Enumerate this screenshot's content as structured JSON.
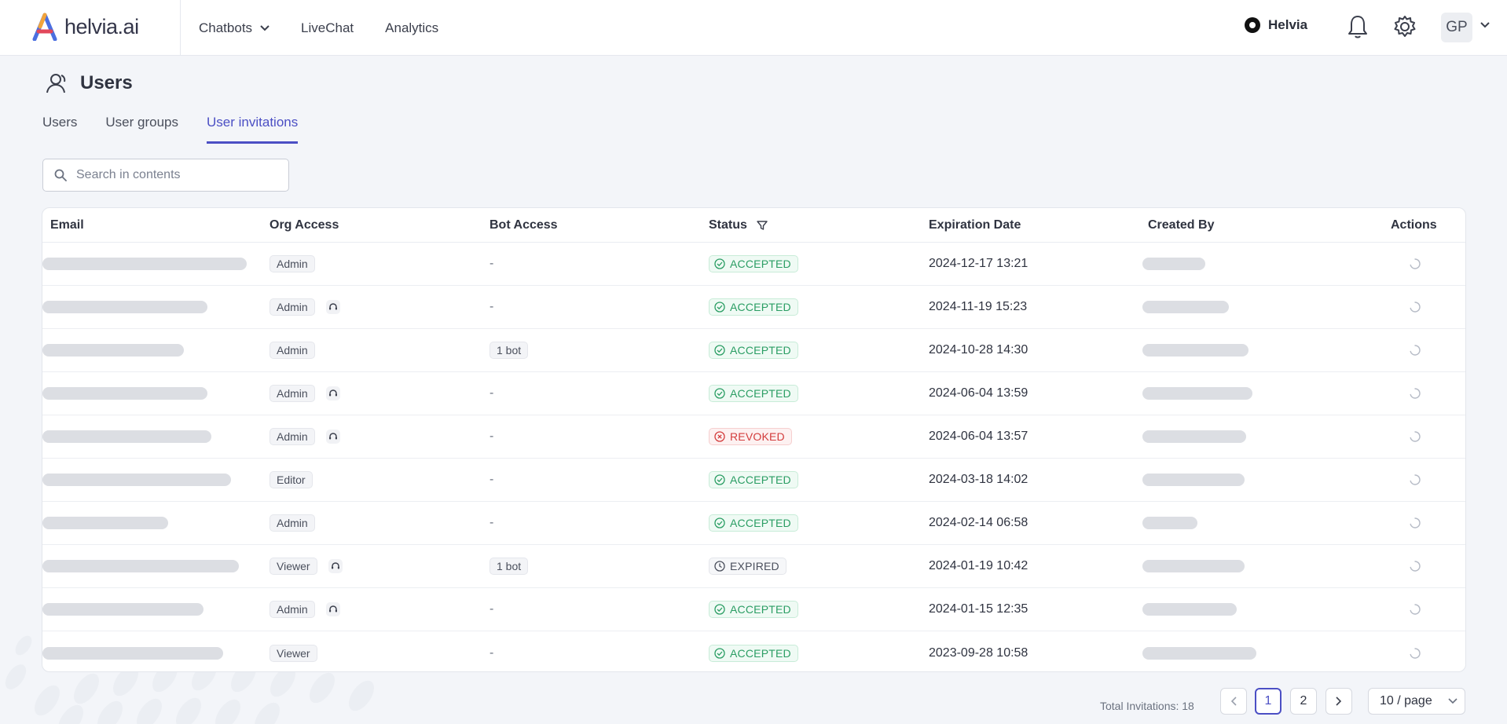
{
  "brand": {
    "name": "helvia.ai"
  },
  "nav": {
    "items": [
      {
        "label": "Chatbots",
        "has_dropdown": true
      },
      {
        "label": "LiveChat"
      },
      {
        "label": "Analytics"
      }
    ],
    "org_name": "Helvia",
    "avatar_initials": "GP"
  },
  "page": {
    "title": "Users",
    "tabs": [
      {
        "label": "Users",
        "active": false
      },
      {
        "label": "User groups",
        "active": false
      },
      {
        "label": "User invitations",
        "active": true
      }
    ],
    "search_placeholder": "Search in contents"
  },
  "table": {
    "columns": [
      "Email",
      "Org Access",
      "Bot Access",
      "Status",
      "Expiration Date",
      "Created By",
      "Actions"
    ],
    "rows": [
      {
        "email": "",
        "org": "Admin",
        "agent": false,
        "bot": "-",
        "status": "ACCEPTED",
        "expires": "2024-12-17 13:21",
        "created_by": ""
      },
      {
        "email": "",
        "org": "Admin",
        "agent": true,
        "bot": "-",
        "status": "ACCEPTED",
        "expires": "2024-11-19 15:23",
        "created_by": ""
      },
      {
        "email": "",
        "org": "Admin",
        "agent": false,
        "bot": "1 bot",
        "status": "ACCEPTED",
        "expires": "2024-10-28 14:30",
        "created_by": ""
      },
      {
        "email": "",
        "org": "Admin",
        "agent": true,
        "bot": "-",
        "status": "ACCEPTED",
        "expires": "2024-06-04 13:59",
        "created_by": ""
      },
      {
        "email": "",
        "org": "Admin",
        "agent": true,
        "bot": "-",
        "status": "REVOKED",
        "expires": "2024-06-04 13:57",
        "created_by": ""
      },
      {
        "email": "",
        "org": "Editor",
        "agent": false,
        "bot": "-",
        "status": "ACCEPTED",
        "expires": "2024-03-18 14:02",
        "created_by": ""
      },
      {
        "email": "",
        "org": "Admin",
        "agent": false,
        "bot": "-",
        "status": "ACCEPTED",
        "expires": "2024-02-14 06:58",
        "created_by": ""
      },
      {
        "email": "",
        "org": "Viewer",
        "agent": true,
        "bot": "1 bot",
        "status": "EXPIRED",
        "expires": "2024-01-19 10:42",
        "created_by": ""
      },
      {
        "email": "",
        "org": "Admin",
        "agent": true,
        "bot": "-",
        "status": "ACCEPTED",
        "expires": "2024-01-15 12:35",
        "created_by": ""
      },
      {
        "email": "",
        "org": "Viewer",
        "agent": false,
        "bot": "-",
        "status": "ACCEPTED",
        "expires": "2023-09-28 10:58",
        "created_by": ""
      }
    ]
  },
  "pagination": {
    "total_label": "Total Invitations: 18",
    "pages": [
      "1",
      "2"
    ],
    "current": "1",
    "page_size": "10 / page"
  },
  "colors": {
    "accent": "#4b4fc4",
    "accepted": "#2a9d63",
    "revoked": "#d33c3c"
  }
}
